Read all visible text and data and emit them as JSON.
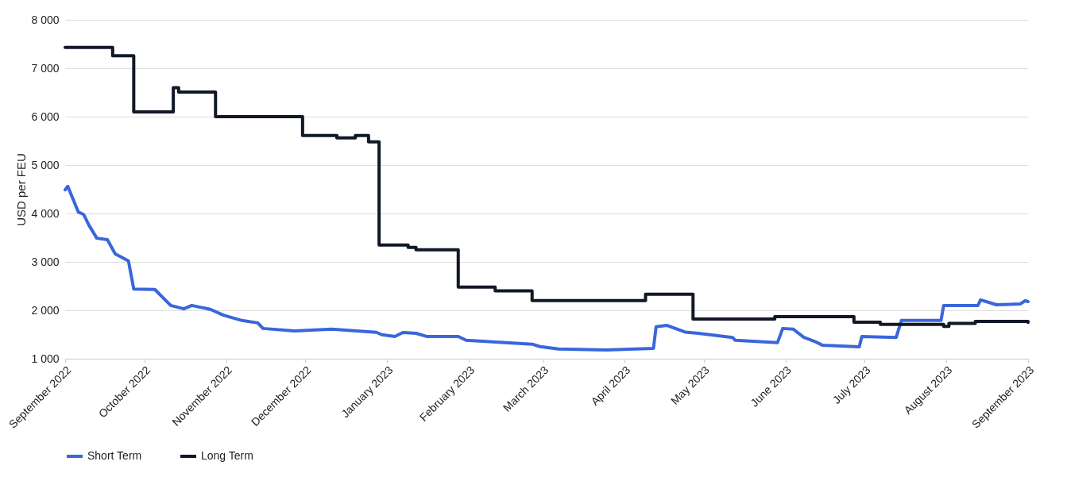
{
  "chart_data": {
    "type": "line",
    "ylabel": "USD per FEU",
    "ylim": [
      1000,
      8000
    ],
    "yticks": [
      {
        "value": 1000,
        "label": "1 000"
      },
      {
        "value": 2000,
        "label": "2 000"
      },
      {
        "value": 3000,
        "label": "3 000"
      },
      {
        "value": 4000,
        "label": "4 000"
      },
      {
        "value": 5000,
        "label": "5 000"
      },
      {
        "value": 6000,
        "label": "6 000"
      },
      {
        "value": 7000,
        "label": "7 000"
      },
      {
        "value": 8000,
        "label": "8 000"
      }
    ],
    "xlim": [
      "2022-09-01",
      "2023-09-01"
    ],
    "xticks": [
      {
        "value": "2022-09-01",
        "label": "September 2022"
      },
      {
        "value": "2022-10-01",
        "label": "October 2022"
      },
      {
        "value": "2022-11-01",
        "label": "November 2022"
      },
      {
        "value": "2022-12-01",
        "label": "December 2022"
      },
      {
        "value": "2023-01-01",
        "label": "January 2023"
      },
      {
        "value": "2023-02-01",
        "label": "February 2023"
      },
      {
        "value": "2023-03-01",
        "label": "March 2023"
      },
      {
        "value": "2023-04-01",
        "label": "April 2023"
      },
      {
        "value": "2023-05-01",
        "label": "May 2023"
      },
      {
        "value": "2023-06-01",
        "label": "June 2023"
      },
      {
        "value": "2023-07-01",
        "label": "July 2023"
      },
      {
        "value": "2023-08-01",
        "label": "August 2023"
      },
      {
        "value": "2023-09-01",
        "label": "September 2023"
      }
    ],
    "grid": "y",
    "legend": "bottom",
    "marker": "none",
    "series": [
      {
        "name": "Short Term",
        "type": "line",
        "color": "#3a66db",
        "x": [
          "2022-09-01",
          "2022-09-02",
          "2022-09-06",
          "2022-09-08",
          "2022-09-10",
          "2022-09-13",
          "2022-09-17",
          "2022-09-20",
          "2022-09-25",
          "2022-09-27",
          "2022-10-05",
          "2022-10-11",
          "2022-10-16",
          "2022-10-19",
          "2022-10-26",
          "2022-10-31",
          "2022-11-07",
          "2022-11-13",
          "2022-11-15",
          "2022-11-27",
          "2022-12-11",
          "2022-12-28",
          "2022-12-30",
          "2023-01-04",
          "2023-01-07",
          "2023-01-12",
          "2023-01-16",
          "2023-01-28",
          "2023-01-31",
          "2023-02-25",
          "2023-02-28",
          "2023-03-07",
          "2023-03-25",
          "2023-04-12",
          "2023-04-13",
          "2023-04-17",
          "2023-04-24",
          "2023-04-29",
          "2023-05-12",
          "2023-05-13",
          "2023-05-29",
          "2023-05-31",
          "2023-06-04",
          "2023-06-08",
          "2023-06-12",
          "2023-06-15",
          "2023-06-29",
          "2023-06-30",
          "2023-07-13",
          "2023-07-15",
          "2023-07-30",
          "2023-07-31",
          "2023-08-13",
          "2023-08-14",
          "2023-08-20",
          "2023-08-29",
          "2023-08-31",
          "2023-09-01"
        ],
        "values": [
          4490,
          4560,
          4030,
          3980,
          3760,
          3490,
          3460,
          3165,
          3020,
          2440,
          2430,
          2100,
          2030,
          2100,
          2020,
          1900,
          1790,
          1740,
          1625,
          1575,
          1610,
          1545,
          1495,
          1460,
          1540,
          1525,
          1460,
          1460,
          1380,
          1300,
          1250,
          1200,
          1180,
          1215,
          1660,
          1690,
          1550,
          1525,
          1440,
          1380,
          1330,
          1625,
          1610,
          1440,
          1360,
          1280,
          1245,
          1460,
          1440,
          1790,
          1790,
          2100,
          2100,
          2215,
          2115,
          2130,
          2200,
          2180
        ]
      },
      {
        "name": "Long Term",
        "type": "step",
        "color": "#111827",
        "x": [
          "2022-09-01",
          "2022-09-19",
          "2022-09-27",
          "2022-10-12",
          "2022-10-14",
          "2022-10-28",
          "2022-11-30",
          "2022-12-13",
          "2022-12-20",
          "2022-12-25",
          "2022-12-29",
          "2023-01-09",
          "2023-01-12",
          "2023-01-28",
          "2023-02-11",
          "2023-02-25",
          "2023-04-09",
          "2023-04-27",
          "2023-05-28",
          "2023-06-27",
          "2023-07-07",
          "2023-07-31",
          "2023-08-02",
          "2023-08-12",
          "2023-09-01"
        ],
        "values": [
          7430,
          7260,
          6100,
          6600,
          6510,
          6000,
          5610,
          5560,
          5610,
          5480,
          3350,
          3300,
          3250,
          2480,
          2400,
          2200,
          2330,
          1820,
          1870,
          1755,
          1710,
          1670,
          1730,
          1770,
          1750
        ]
      }
    ]
  }
}
